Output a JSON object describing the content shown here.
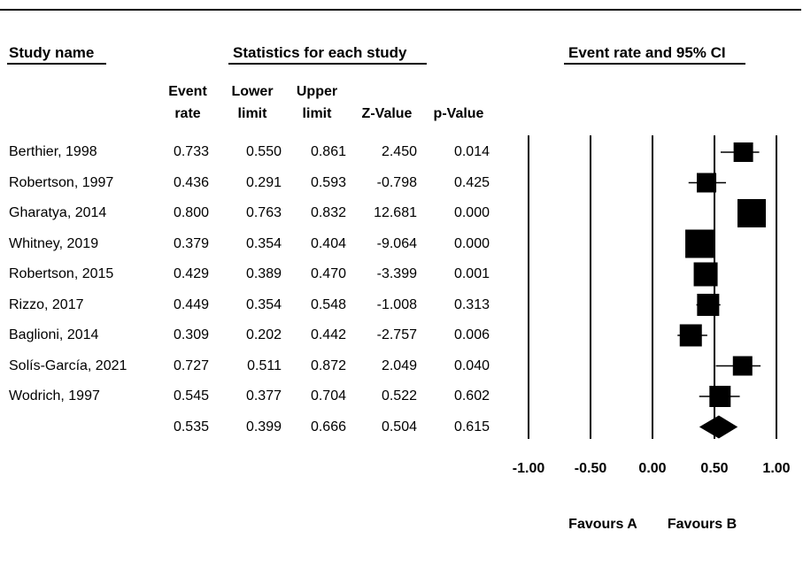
{
  "headers": {
    "study_name": "Study name",
    "stats": "Statistics for each study",
    "plot": "Event rate and 95% CI"
  },
  "columns": [
    {
      "line1": "Event",
      "line2": "rate"
    },
    {
      "line1": "Lower",
      "line2": "limit"
    },
    {
      "line1": "Upper",
      "line2": "limit"
    },
    {
      "line1": "",
      "line2": "Z-Value"
    },
    {
      "line1": "",
      "line2": "p-Value"
    }
  ],
  "rows": [
    {
      "study": "Berthier, 1998",
      "rate": "0.733",
      "lower": "0.550",
      "upper": "0.861",
      "z": "2.450",
      "p": "0.014"
    },
    {
      "study": "Robertson, 1997",
      "rate": "0.436",
      "lower": "0.291",
      "upper": "0.593",
      "z": "-0.798",
      "p": "0.425"
    },
    {
      "study": "Gharatya, 2014",
      "rate": "0.800",
      "lower": "0.763",
      "upper": "0.832",
      "z": "12.681",
      "p": "0.000"
    },
    {
      "study": "Whitney, 2019",
      "rate": "0.379",
      "lower": "0.354",
      "upper": "0.404",
      "z": "-9.064",
      "p": "0.000"
    },
    {
      "study": "Robertson, 2015",
      "rate": "0.429",
      "lower": "0.389",
      "upper": "0.470",
      "z": "-3.399",
      "p": "0.001"
    },
    {
      "study": "Rizzo, 2017",
      "rate": "0.449",
      "lower": "0.354",
      "upper": "0.548",
      "z": "-1.008",
      "p": "0.313"
    },
    {
      "study": "Baglioni, 2014",
      "rate": "0.309",
      "lower": "0.202",
      "upper": "0.442",
      "z": "-2.757",
      "p": "0.006"
    },
    {
      "study": "Solís-García, 2021",
      "rate": "0.727",
      "lower": "0.511",
      "upper": "0.872",
      "z": "2.049",
      "p": "0.040"
    },
    {
      "study": "Wodrich, 1997",
      "rate": "0.545",
      "lower": "0.377",
      "upper": "0.704",
      "z": "0.522",
      "p": "0.602"
    }
  ],
  "summary": {
    "study": "",
    "rate": "0.535",
    "lower": "0.399",
    "upper": "0.666",
    "z": "0.504",
    "p": "0.615"
  },
  "chart_data": {
    "type": "scatter",
    "subtype": "forest-plot",
    "title": "Event rate and 95% CI",
    "xlim": [
      -1.0,
      1.0
    ],
    "x_ticks": [
      "-1.00",
      "-0.50",
      "0.00",
      "0.50",
      "1.00"
    ],
    "vertical_lines_at": [
      -1.0,
      -0.5,
      0.0,
      0.5,
      1.0
    ],
    "favours_left": "Favours A",
    "favours_right": "Favours B",
    "studies": [
      {
        "name": "Berthier, 1998",
        "rate": 0.733,
        "lower": 0.55,
        "upper": 0.861,
        "weight": 2
      },
      {
        "name": "Robertson, 1997",
        "rate": 0.436,
        "lower": 0.291,
        "upper": 0.593,
        "weight": 2
      },
      {
        "name": "Gharatya, 2014",
        "rate": 0.8,
        "lower": 0.763,
        "upper": 0.832,
        "weight": 3
      },
      {
        "name": "Whitney, 2019",
        "rate": 0.379,
        "lower": 0.354,
        "upper": 0.404,
        "weight": 3
      },
      {
        "name": "Robertson, 2015",
        "rate": 0.429,
        "lower": 0.389,
        "upper": 0.47,
        "weight": 2.5
      },
      {
        "name": "Rizzo, 2017",
        "rate": 0.449,
        "lower": 0.354,
        "upper": 0.548,
        "weight": 2.3
      },
      {
        "name": "Baglioni, 2014",
        "rate": 0.309,
        "lower": 0.202,
        "upper": 0.442,
        "weight": 2.3
      },
      {
        "name": "Solís-García, 2021",
        "rate": 0.727,
        "lower": 0.511,
        "upper": 0.872,
        "weight": 2
      },
      {
        "name": "Wodrich, 1997",
        "rate": 0.545,
        "lower": 0.377,
        "upper": 0.704,
        "weight": 2.2
      }
    ],
    "summary": {
      "rate": 0.535,
      "lower": 0.399,
      "upper": 0.666
    }
  }
}
